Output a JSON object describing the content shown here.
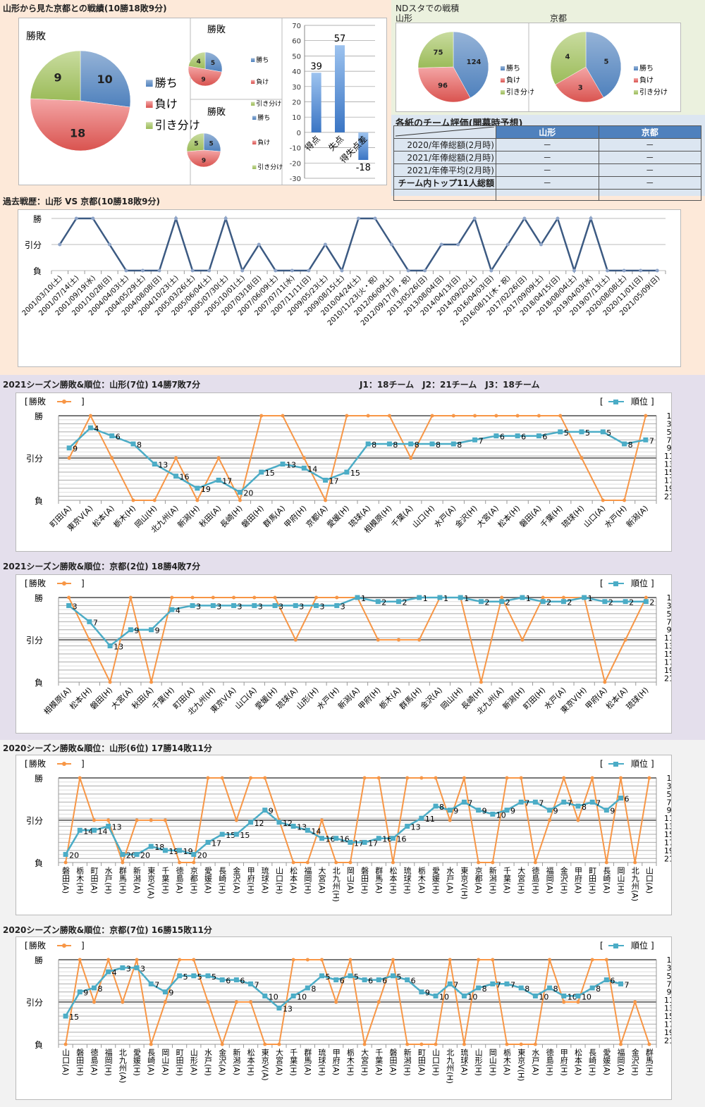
{
  "summary": {
    "title": "山形から見た京都との戦績(10勝18敗9分)"
  },
  "ndsta": {
    "title": "NDスタでの戦積"
  },
  "evaluation": {
    "title": "各紙のチーム評価(開幕時予想)",
    "columns": [
      "山形",
      "京都"
    ],
    "rows": [
      {
        "label": "2020/年俸総額(2月時)",
        "values": [
          "－",
          "－"
        ]
      },
      {
        "label": "2021/年俸総額(2月時)",
        "values": [
          "－",
          "－"
        ]
      },
      {
        "label": "2021/年俸平均(2月時)",
        "values": [
          "－",
          "－"
        ]
      },
      {
        "label": "チーム内トップ11人総額",
        "values": [
          "－",
          "－"
        ]
      },
      {
        "label": "",
        "values": [
          "",
          ""
        ]
      }
    ]
  },
  "season2021": {
    "league_info": "J1：18チーム　J2：21チーム　J3：18チーム"
  },
  "colors": {
    "win": "#4f81bd",
    "loss": "#d9534f",
    "draw": "#9bbb59",
    "result_line": "#f79646",
    "rank_line": "#4bacc6",
    "history_line": "#3c5a82",
    "table_header": "#4f81bd"
  },
  "chart_data": [
    {
      "type": "pie",
      "title": "勝敗",
      "labels": [
        "勝ち",
        "負け",
        "引き分け"
      ],
      "values": [
        10,
        18,
        9
      ]
    },
    {
      "type": "pie",
      "title": "勝敗",
      "labels": [
        "勝ち",
        "負け",
        "引き分け"
      ],
      "values": [
        5,
        9,
        4
      ]
    },
    {
      "type": "pie",
      "title": "勝敗",
      "labels": [
        "勝ち",
        "負け",
        "引き分け"
      ],
      "values": [
        5,
        9,
        5
      ]
    },
    {
      "type": "bar",
      "categories": [
        "得点",
        "失点",
        "得失点差"
      ],
      "values": [
        39,
        57,
        -18
      ],
      "ylim": [
        -30,
        70
      ],
      "yticks": [
        -30,
        -20,
        -10,
        0,
        10,
        20,
        30,
        40,
        50,
        60,
        70
      ],
      "grid": true
    },
    {
      "type": "pie",
      "title": "山形",
      "labels": [
        "勝ち",
        "負け",
        "引き分け"
      ],
      "values": [
        124,
        96,
        75
      ]
    },
    {
      "type": "pie",
      "title": "京都",
      "labels": [
        "勝ち",
        "負け",
        "引き分け"
      ],
      "values": [
        5,
        3,
        4
      ]
    },
    {
      "type": "line",
      "title": "過去戦歴：山形 VS 京都(10勝18敗9分)",
      "ytick_labels": [
        "勝",
        "引分",
        "負"
      ],
      "grid": true,
      "categories": [
        "2001/03/10(土)",
        "2001/07/14(土)",
        "2001/09/19(水)",
        "2001/10/28(日)",
        "2004/04/03(土)",
        "2004/05/29(土)",
        "2004/08/08(日)",
        "2004/10/23(土)",
        "2005/03/26(土)",
        "2005/06/04(土)",
        "2005/07/30(土)",
        "2005/10/01(土)",
        "2007/03/18(日)",
        "2007/06/09(土)",
        "2007/07/11(水)",
        "2007/11/11(日)",
        "2009/05/23(土)",
        "2009/08/15(土)",
        "2010/04/24(土)",
        "2010/11/23(火・祝)",
        "2012/06/09(土)",
        "2012/09/17(月・祝)",
        "2013/05/26(日)",
        "2013/08/04(日)",
        "2014/04/13(日)",
        "2014/09/20(土)",
        "2016/04/03(日)",
        "2016/08/11(木・祝)",
        "2017/02/26(日)",
        "2017/09/09(土)",
        "2018/04/15(日)",
        "2018/08/04(土)",
        "2019/04/03(水)",
        "2019/07/13(土)",
        "2020/08/08(土)",
        "2020/11/01(日)",
        "2021/05/09(日)"
      ],
      "results": [
        "引分",
        "勝",
        "勝",
        "引分",
        "負",
        "負",
        "負",
        "勝",
        "負",
        "負",
        "勝",
        "負",
        "引分",
        "負",
        "負",
        "負",
        "引分",
        "負",
        "勝",
        "勝",
        "引分",
        "負",
        "負",
        "引分",
        "引分",
        "勝",
        "負",
        "引分",
        "勝",
        "引分",
        "勝",
        "負",
        "勝",
        "負",
        "負",
        "負",
        "負"
      ]
    },
    {
      "type": "line",
      "title": "2021シーズン勝敗&順位：山形(7位) 14勝7敗7分",
      "legend": [
        "勝敗",
        "順位"
      ],
      "ytick_labels": [
        "勝",
        "引分",
        "負"
      ],
      "rank_ticks": [
        1,
        3,
        5,
        7,
        9,
        11,
        13,
        15,
        17,
        19,
        21
      ],
      "grid": true,
      "categories": [
        "町田(A)",
        "東京V(A)",
        "松本(A)",
        "栃木(H)",
        "岡山(H)",
        "北九州(A)",
        "新潟(H)",
        "秋田(A)",
        "長崎(H)",
        "磐田(H)",
        "群馬(A)",
        "甲府(H)",
        "京都(A)",
        "愛媛(H)",
        "琉球(A)",
        "相模原(H)",
        "千葉(A)",
        "山口(H)",
        "水戸(A)",
        "金沢(H)",
        "大宮(A)",
        "松本(H)",
        "磐田(A)",
        "千葉(H)",
        "琉球(H)",
        "山口(A)",
        "水戸(H)",
        "新潟(A)"
      ],
      "results": [
        "引分",
        "勝",
        "引分",
        "負",
        "負",
        "引分",
        "負",
        "引分",
        "負",
        "勝",
        "勝",
        "引分",
        "負",
        "勝",
        "勝",
        "勝",
        "引分",
        "勝",
        "勝",
        "勝",
        "勝",
        "勝",
        "勝",
        "勝",
        "引分",
        "負",
        "負",
        "勝"
      ],
      "ranks": [
        9,
        4,
        6,
        8,
        13,
        16,
        19,
        17,
        20,
        15,
        13,
        14,
        17,
        15,
        8,
        8,
        8,
        8,
        8,
        7,
        6,
        6,
        6,
        5,
        5,
        5,
        8,
        7
      ]
    },
    {
      "type": "line",
      "title": "2021シーズン勝敗&順位：京都(2位) 18勝4敗7分",
      "legend": [
        "勝敗",
        "順位"
      ],
      "ytick_labels": [
        "勝",
        "引分",
        "負"
      ],
      "rank_ticks": [
        1,
        3,
        5,
        7,
        9,
        11,
        13,
        15,
        17,
        19,
        21
      ],
      "grid": true,
      "categories": [
        "相模原(A)",
        "松本(H)",
        "磐田(H)",
        "大宮(A)",
        "秋田(A)",
        "千葉(H)",
        "町田(A)",
        "北九州(H)",
        "東京V(A)",
        "山口(A)",
        "愛媛(H)",
        "琉球(A)",
        "山形(H)",
        "水戸(H)",
        "新潟(A)",
        "甲府(H)",
        "栃木(A)",
        "群馬(H)",
        "金沢(A)",
        "岡山(H)",
        "長崎(H)",
        "北九州(A)",
        "新潟(H)",
        "町田(H)",
        "水戸(A)",
        "東京V(H)",
        "甲府(A)",
        "松本(A)",
        "琉球(H)"
      ],
      "results": [
        "勝",
        "引分",
        "負",
        "勝",
        "負",
        "勝",
        "勝",
        "勝",
        "勝",
        "勝",
        "勝",
        "引分",
        "勝",
        "勝",
        "勝",
        "引分",
        "引分",
        "引分",
        "勝",
        "勝",
        "負",
        "勝",
        "引分",
        "勝",
        "勝",
        "勝",
        "負",
        "引分",
        "勝"
      ],
      "ranks": [
        3,
        7,
        13,
        9,
        9,
        4,
        3,
        3,
        3,
        3,
        3,
        3,
        3,
        3,
        1,
        2,
        2,
        1,
        1,
        1,
        2,
        2,
        1,
        2,
        2,
        1,
        2,
        2,
        2
      ]
    },
    {
      "type": "line",
      "title": "2020シーズン勝敗&順位：山形(6位) 17勝14敗11分",
      "legend": [
        "勝敗",
        "順位"
      ],
      "ytick_labels": [
        "勝",
        "引分",
        "負"
      ],
      "rank_ticks": [
        1,
        3,
        5,
        7,
        9,
        11,
        13,
        15,
        17,
        19,
        21
      ],
      "grid": true,
      "categories": [
        "磐田(A)",
        "栃木(H)",
        "町田(A)",
        "水戸(H)",
        "群馬(H)",
        "新潟(A)",
        "東京V(A)",
        "千葉(H)",
        "徳島(A)",
        "京都(H)",
        "愛媛(A)",
        "長崎(H)",
        "金沢(A)",
        "甲府(H)",
        "琉球(A)",
        "山口(H)",
        "松本(A)",
        "福岡(H)",
        "大宮(A)",
        "北九州(H)",
        "岡山(A)",
        "磐田(H)",
        "群馬(A)",
        "松本(H)",
        "琉球(H)",
        "栃木(A)",
        "愛媛(H)",
        "水戸(A)",
        "東京V(H)",
        "京都(A)",
        "新潟(H)",
        "千葉(A)",
        "大宮(H)",
        "徳島(H)",
        "福岡(A)",
        "金沢(H)",
        "甲府(A)",
        "町田(H)",
        "長崎(A)",
        "岡山(H)",
        "北九州(A)",
        "山口(A)"
      ],
      "results": [
        "負",
        "勝",
        "引分",
        "引分",
        "負",
        "引分",
        "引分",
        "引分",
        "負",
        "負",
        "勝",
        "勝",
        "引分",
        "勝",
        "勝",
        "引分",
        "負",
        "負",
        "引分",
        "負",
        "負",
        "勝",
        "勝",
        "負",
        "勝",
        "勝",
        "勝",
        "引分",
        "勝",
        "負",
        "負",
        "勝",
        "勝",
        "負",
        "引分",
        "勝",
        "引分",
        "勝",
        "負",
        "勝",
        "負",
        "勝"
      ],
      "ranks": [
        20,
        14,
        14,
        13,
        20,
        20,
        18,
        19,
        19,
        20,
        17,
        15,
        15,
        12,
        9,
        12,
        13,
        14,
        16,
        16,
        17,
        17,
        16,
        16,
        13,
        11,
        8,
        9,
        7,
        9,
        10,
        9,
        7,
        7,
        9,
        7,
        8,
        7,
        9,
        6,
        null,
        null
      ]
    },
    {
      "type": "line",
      "title": "2020シーズン勝敗&順位：京都(7位) 16勝15敗11分",
      "legend": [
        "勝敗",
        "順位"
      ],
      "ytick_labels": [
        "勝",
        "引分",
        "負"
      ],
      "rank_ticks": [
        1,
        3,
        5,
        7,
        9,
        11,
        13,
        15,
        17,
        19,
        21
      ],
      "grid": true,
      "categories": [
        "山口(A)",
        "磐田(H)",
        "徳島(A)",
        "福岡(H)",
        "北九州(A)",
        "愛媛(H)",
        "長崎(A)",
        "岡山(A)",
        "町田(H)",
        "山形(A)",
        "水戸(H)",
        "金沢(A)",
        "新潟(A)",
        "松本(H)",
        "東京V(A)",
        "大宮(A)",
        "千葉(H)",
        "群馬(A)",
        "琉球(H)",
        "甲府(A)",
        "栃木(H)",
        "大宮(H)",
        "千葉(A)",
        "磐田(A)",
        "新潟(H)",
        "町田(A)",
        "山口(H)",
        "北九州(H)",
        "琉球(A)",
        "山形(H)",
        "岡山(H)",
        "栃木(A)",
        "東京V(H)",
        "水戸(A)",
        "徳島(H)",
        "甲府(H)",
        "松本(A)",
        "長崎(H)",
        "愛媛(A)",
        "福岡(A)",
        "金沢(H)",
        "群馬(H)"
      ],
      "results": [
        "負",
        "勝",
        "引分",
        "勝",
        "引分",
        "勝",
        "負",
        "引分",
        "勝",
        "勝",
        "引分",
        "負",
        "引分",
        "引分",
        "負",
        "負",
        "勝",
        "勝",
        "勝",
        "引分",
        "勝",
        "負",
        "引分",
        "勝",
        "負",
        "負",
        "負",
        "勝",
        "負",
        "勝",
        "勝",
        "負",
        "負",
        "負",
        "勝",
        "引分",
        "引分",
        "勝",
        "勝",
        "負",
        "引分",
        "負"
      ],
      "ranks": [
        15,
        9,
        8,
        4,
        3,
        3,
        7,
        9,
        5,
        5,
        5,
        6,
        6,
        7,
        10,
        13,
        10,
        8,
        5,
        6,
        5,
        6,
        6,
        5,
        6,
        9,
        10,
        7,
        10,
        8,
        7,
        7,
        8,
        10,
        8,
        10,
        10,
        8,
        6,
        7,
        null,
        null
      ]
    }
  ]
}
